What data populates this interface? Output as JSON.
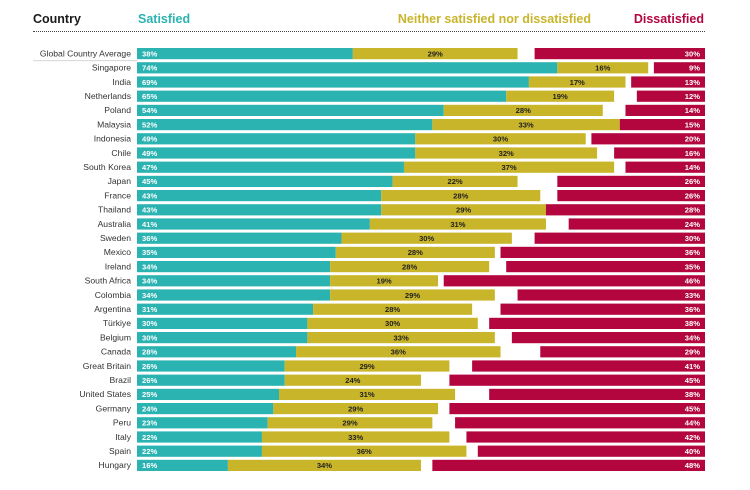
{
  "header": {
    "country": "Country",
    "satisfied": "Satisfied",
    "neutral": "Neither satisfied nor dissatisfied",
    "dissatisfied": "Dissatisfied"
  },
  "colors": {
    "satisfied": "#2bb3b1",
    "neutral": "#c9b52a",
    "dissatisfied": "#b3063f"
  },
  "chart_data": {
    "type": "bar",
    "orientation": "horizontal",
    "stacked": true,
    "categories": [
      "Global Country Average",
      "Singapore",
      "India",
      "Netherlands",
      "Poland",
      "Malaysia",
      "Indonesia",
      "Chile",
      "South Korea",
      "Japan",
      "France",
      "Thailand",
      "Australia",
      "Sweden",
      "Mexico",
      "Ireland",
      "South Africa",
      "Colombia",
      "Argentina",
      "Türkiye",
      "Belgium",
      "Canada",
      "Great Britain",
      "Brazil",
      "United States",
      "Germany",
      "Peru",
      "Italy",
      "Spain",
      "Hungary"
    ],
    "series": [
      {
        "name": "Satisfied",
        "values": [
          38,
          74,
          69,
          65,
          54,
          52,
          49,
          49,
          47,
          45,
          43,
          43,
          41,
          36,
          35,
          34,
          34,
          34,
          31,
          30,
          30,
          28,
          26,
          26,
          25,
          24,
          23,
          22,
          22,
          16
        ]
      },
      {
        "name": "Neither satisfied nor dissatisfied",
        "values": [
          29,
          16,
          17,
          19,
          28,
          33,
          30,
          32,
          37,
          22,
          28,
          29,
          31,
          30,
          28,
          28,
          19,
          29,
          28,
          30,
          33,
          36,
          29,
          24,
          31,
          29,
          29,
          33,
          36,
          34
        ]
      },
      {
        "name": "Dissatisfied",
        "values": [
          30,
          9,
          13,
          12,
          14,
          15,
          20,
          16,
          14,
          26,
          26,
          28,
          24,
          30,
          36,
          35,
          46,
          33,
          36,
          38,
          34,
          29,
          41,
          45,
          38,
          45,
          44,
          42,
          40,
          48
        ]
      }
    ],
    "value_suffix": "%",
    "xlim": [
      0,
      100
    ],
    "legend_position": "top",
    "grid": false
  }
}
